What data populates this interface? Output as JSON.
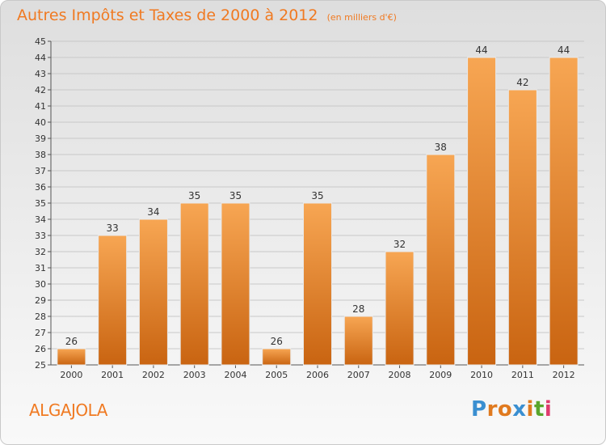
{
  "header": {
    "title": "Autres Impôts et Taxes de 2000 à 2012",
    "subtitle": "(en milliers d'€)"
  },
  "footer": {
    "commune": "ALGAJOLA",
    "logo_letters": [
      "P",
      "r",
      "o",
      "x",
      "i",
      "t",
      "i"
    ],
    "logo_colors": [
      "#3a8fd1",
      "#e07a1f",
      "#e07a1f",
      "#3a8fd1",
      "#e07a1f",
      "#59a52c",
      "#e03a6e"
    ]
  },
  "colors": {
    "bar_top": "#f7a653",
    "bar_bottom": "#c96411",
    "title": "#f07a22",
    "grid": "#c8c8c8"
  },
  "chart_data": {
    "type": "bar",
    "title": "Autres Impôts et Taxes de 2000 à 2012",
    "subtitle": "(en milliers d'€)",
    "categories": [
      "2000",
      "2001",
      "2002",
      "2003",
      "2004",
      "2005",
      "2006",
      "2007",
      "2008",
      "2009",
      "2010",
      "2011",
      "2012"
    ],
    "values": [
      26,
      33,
      34,
      35,
      35,
      26,
      35,
      28,
      32,
      38,
      44,
      42,
      44
    ],
    "ylim": [
      25,
      45
    ],
    "ytick_step": 1,
    "grid": true,
    "legend": "none"
  }
}
